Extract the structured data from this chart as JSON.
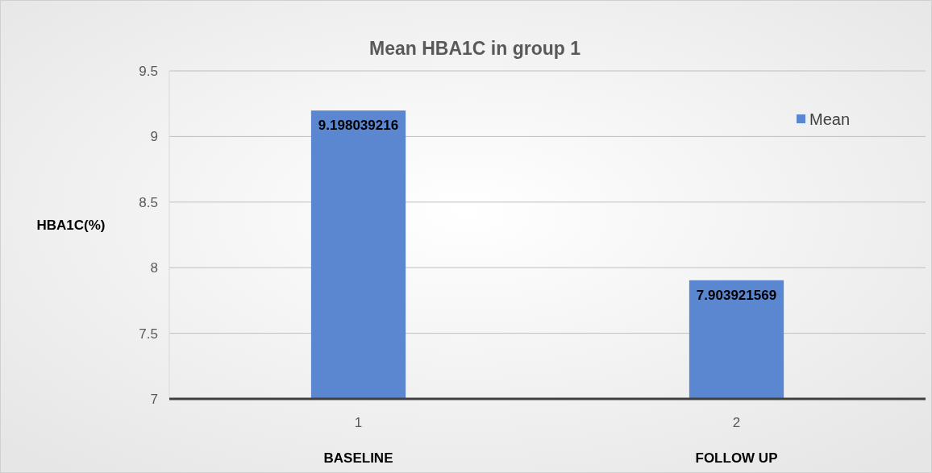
{
  "chart_data": {
    "type": "bar",
    "title": "Mean HBA1C in group 1",
    "ylabel": "HBA1C(%)",
    "categories": [
      "1",
      "2"
    ],
    "series": [
      {
        "name": "Mean",
        "color": "#5b86d0",
        "values": [
          9.198039216,
          7.903921569
        ]
      }
    ],
    "ylim": [
      7,
      9.5
    ],
    "yticks": [
      7,
      7.5,
      8,
      8.5,
      9,
      9.5
    ],
    "grid": "y",
    "legend": "top right",
    "data_labels": true,
    "annotations": [
      "BASELINE",
      "FOLLOW UP"
    ]
  }
}
